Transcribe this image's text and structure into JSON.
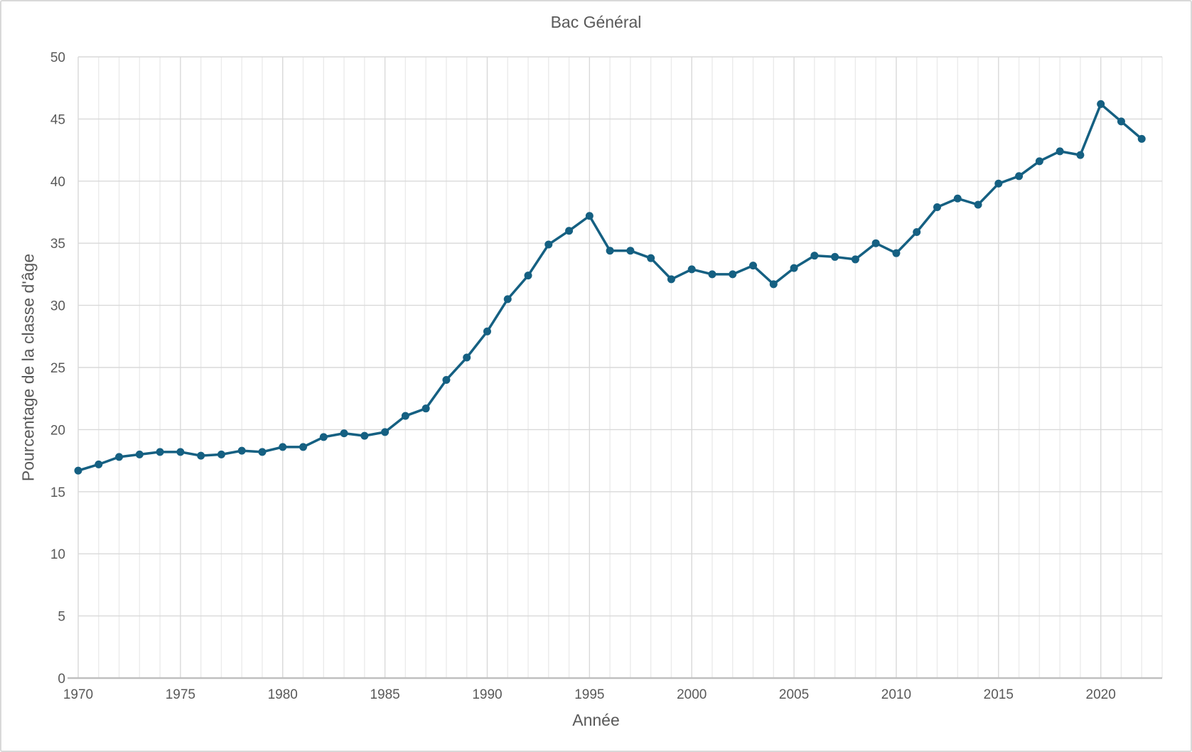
{
  "chart": {
    "title": "Bac Général",
    "x_axis_title": "Année",
    "y_axis_title": "Pourcentage de la classe d'âge"
  },
  "chart_data": {
    "type": "line",
    "title": "Bac Général",
    "xlabel": "Année",
    "ylabel": "Pourcentage de la classe d'âge",
    "x": [
      1970,
      1971,
      1972,
      1973,
      1974,
      1975,
      1976,
      1977,
      1978,
      1979,
      1980,
      1981,
      1982,
      1983,
      1984,
      1985,
      1986,
      1987,
      1988,
      1989,
      1990,
      1991,
      1992,
      1993,
      1994,
      1995,
      1996,
      1997,
      1998,
      1999,
      2000,
      2001,
      2002,
      2003,
      2004,
      2005,
      2006,
      2007,
      2008,
      2009,
      2010,
      2011,
      2012,
      2013,
      2014,
      2015,
      2016,
      2017,
      2018,
      2019,
      2020,
      2021,
      2022
    ],
    "values": [
      16.7,
      17.2,
      17.8,
      18.0,
      18.2,
      18.2,
      17.9,
      18.0,
      18.3,
      18.2,
      18.6,
      18.6,
      19.4,
      19.7,
      19.5,
      19.8,
      21.1,
      21.7,
      24.0,
      25.8,
      27.9,
      30.5,
      32.4,
      34.9,
      36.0,
      37.2,
      34.4,
      34.4,
      33.8,
      32.1,
      32.9,
      32.5,
      32.5,
      33.2,
      31.7,
      33.0,
      34.0,
      33.9,
      33.7,
      35.0,
      34.2,
      35.9,
      37.9,
      38.6,
      38.1,
      39.8,
      40.4,
      41.6,
      42.4,
      42.1,
      46.2,
      44.8,
      43.4
    ],
    "xlim": [
      1970,
      2023
    ],
    "ylim": [
      0,
      50
    ],
    "x_ticks": [
      1970,
      1975,
      1980,
      1985,
      1990,
      1995,
      2000,
      2005,
      2010,
      2015,
      2020
    ],
    "y_ticks": [
      0,
      5,
      10,
      15,
      20,
      25,
      30,
      35,
      40,
      45,
      50
    ],
    "grid": "vertical minor every year, vertical major every 5 years, horizontal every 5 units",
    "legend": "none",
    "line_color": "#156082",
    "marker": "circle",
    "minor_grid_color": "#ebebeb",
    "major_grid_color": "#d9d9d9",
    "axis_line_color": "#bfbfbf",
    "text_color": "#595959"
  }
}
